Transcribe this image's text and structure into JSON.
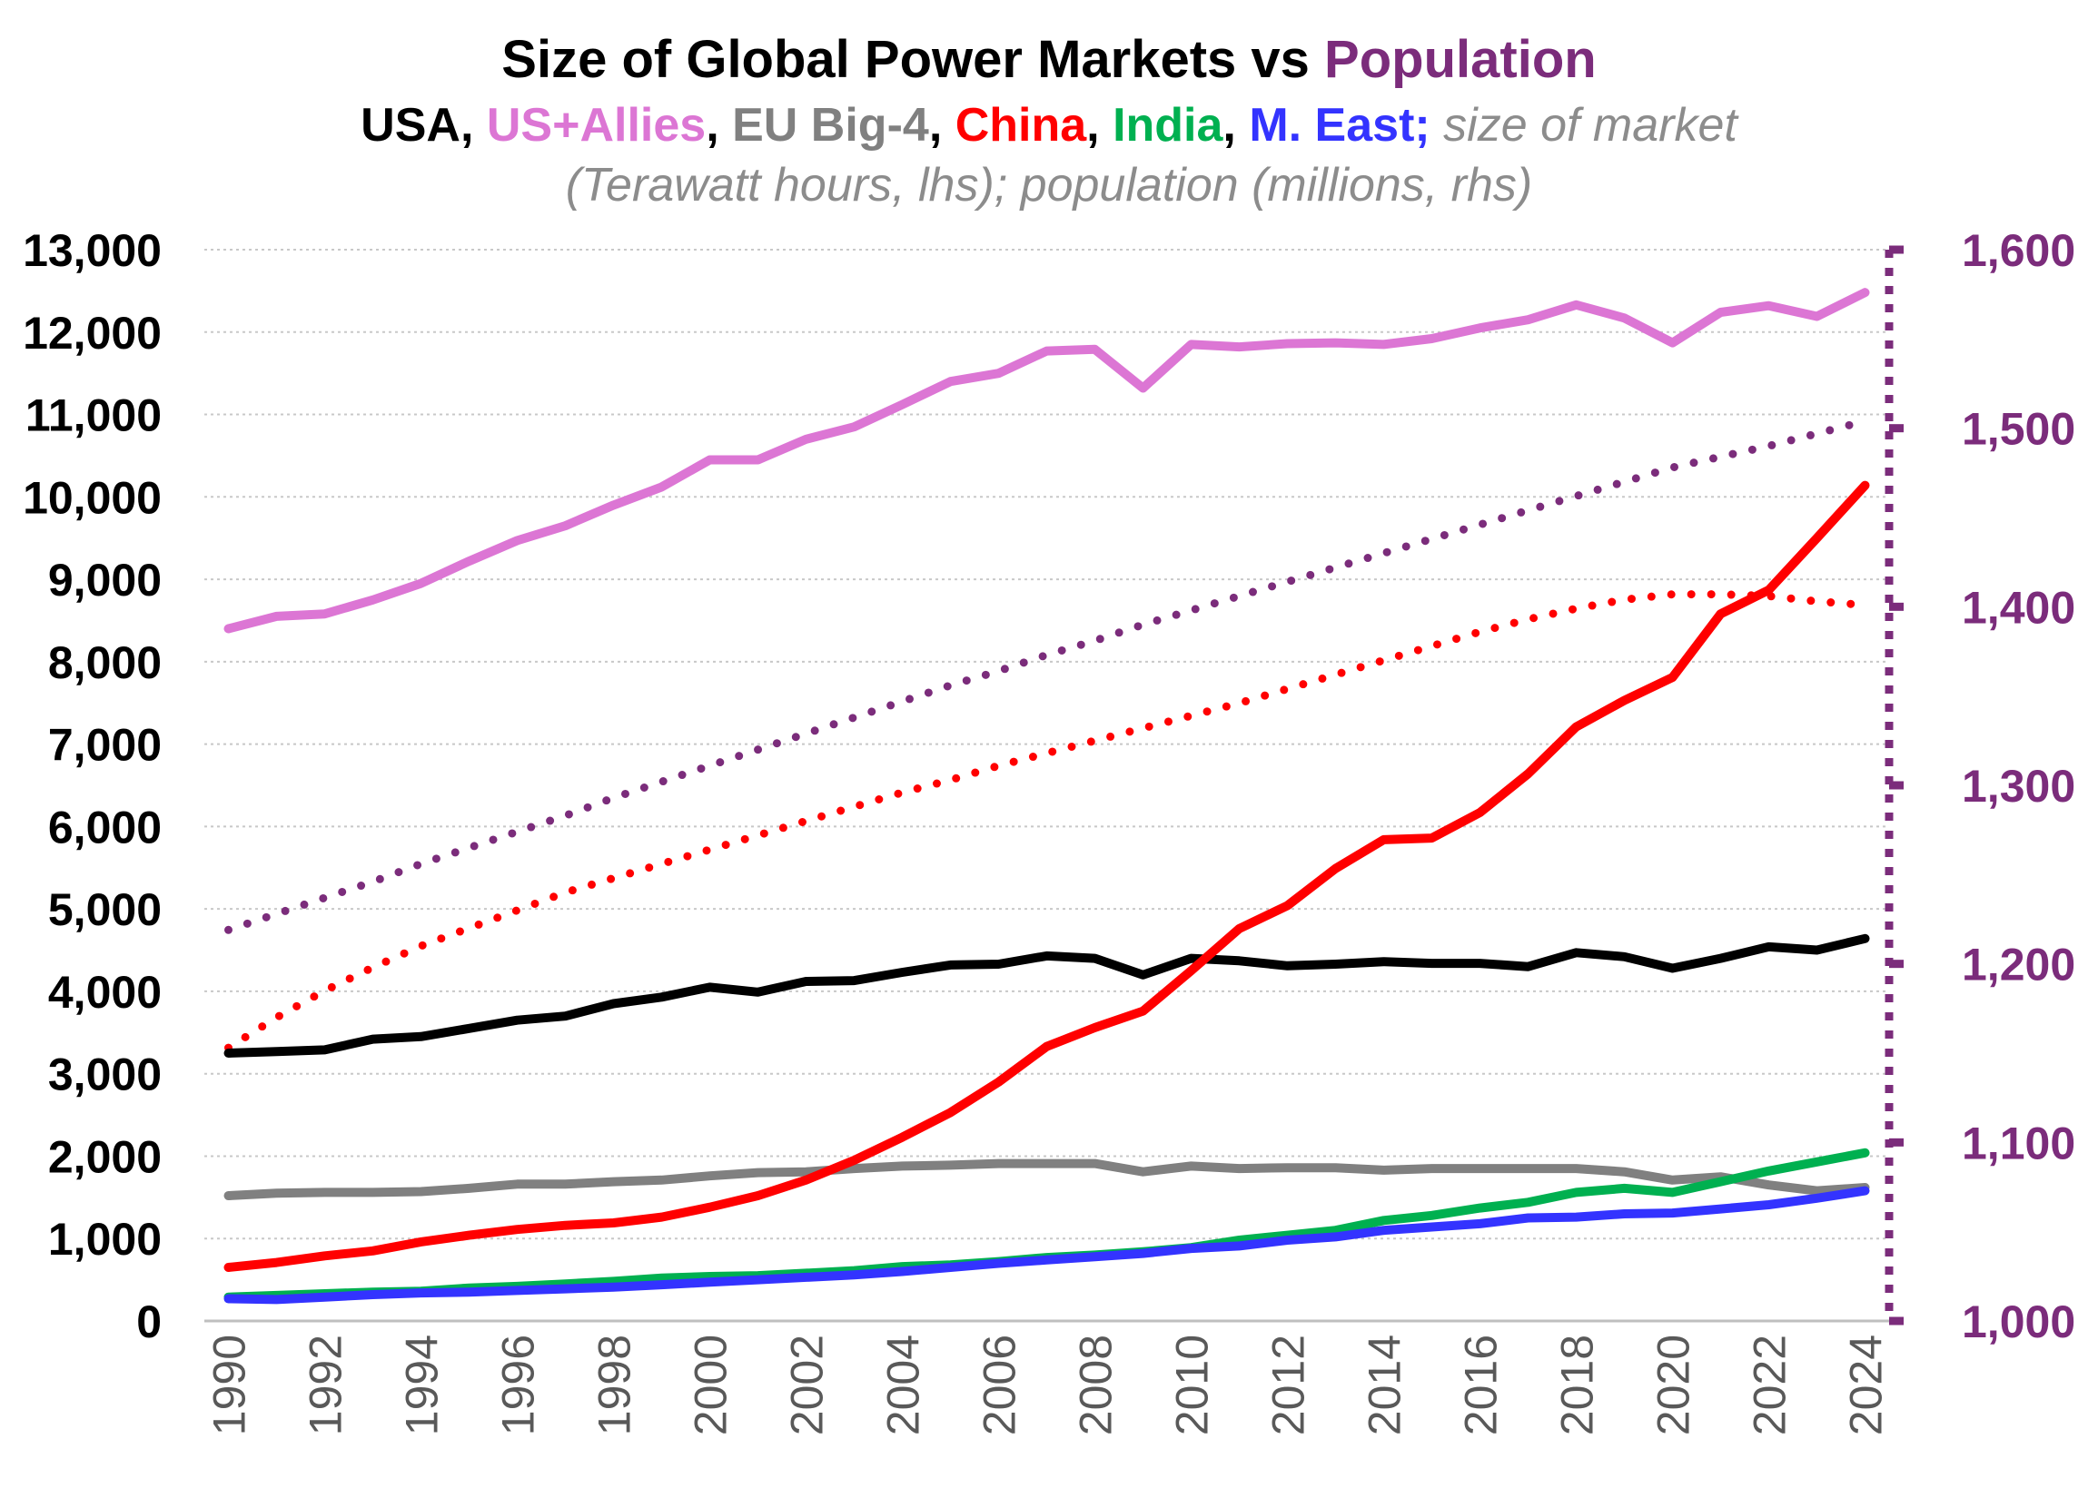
{
  "chart_data": {
    "type": "line",
    "title": {
      "prefix": "Size of Global Power Markets vs ",
      "highlight": "Population",
      "highlight_color": "#7b2c7b"
    },
    "subtitle": {
      "parts": [
        {
          "text": "USA",
          "color": "#000000"
        },
        {
          "text": ", ",
          "color": "#000000"
        },
        {
          "text": "US+Allies",
          "color": "#dc76d4"
        },
        {
          "text": ", ",
          "color": "#000000"
        },
        {
          "text": "EU Big-4",
          "color": "#808080"
        },
        {
          "text": ", ",
          "color": "#000000"
        },
        {
          "text": "China",
          "color": "#ff0000"
        },
        {
          "text": ", ",
          "color": "#000000"
        },
        {
          "text": "India",
          "color": "#00b050"
        },
        {
          "text": ", ",
          "color": "#000000"
        },
        {
          "text": "M. East;",
          "color": "#3333ff"
        }
      ],
      "note": " size of market",
      "line2": "(Terawatt hours, lhs); population (millions, rhs)"
    },
    "x": [
      1990,
      1991,
      1992,
      1993,
      1994,
      1995,
      1996,
      1997,
      1998,
      1999,
      2000,
      2001,
      2002,
      2003,
      2004,
      2005,
      2006,
      2007,
      2008,
      2009,
      2010,
      2011,
      2012,
      2013,
      2014,
      2015,
      2016,
      2017,
      2018,
      2019,
      2020,
      2021,
      2022,
      2023,
      2024
    ],
    "x_tick_labels": [
      "1990",
      "1992",
      "1994",
      "1996",
      "1998",
      "2000",
      "2002",
      "2004",
      "2006",
      "2008",
      "2010",
      "2012",
      "2014",
      "2016",
      "2018",
      "2020",
      "2022",
      "2024"
    ],
    "ylim_left": [
      0,
      13000
    ],
    "y_left_ticks": [
      "0",
      "1,000",
      "2,000",
      "3,000",
      "4,000",
      "5,000",
      "6,000",
      "7,000",
      "8,000",
      "9,000",
      "10,000",
      "11,000",
      "12,000",
      "13,000"
    ],
    "ylim_right": [
      1000,
      1600
    ],
    "y_right_ticks": [
      "1,000",
      "1,100",
      "1,200",
      "1,300",
      "1,400",
      "1,500",
      "1,600"
    ],
    "right_axis_color": "#7b2c7b",
    "grid": true,
    "series": [
      {
        "key": "us_allies",
        "color": "#dc76d4",
        "axis": "left",
        "style": "solid",
        "values": [
          8400,
          8550,
          8580,
          8750,
          8950,
          9220,
          9470,
          9650,
          9900,
          10120,
          10450,
          10450,
          10700,
          10850,
          11120,
          11400,
          11500,
          11770,
          11790,
          11320,
          11850,
          11820,
          11860,
          11870,
          11850,
          11920,
          12050,
          12150,
          12330,
          12170,
          11870,
          12240,
          12320,
          12190,
          12480
        ]
      },
      {
        "key": "usa",
        "color": "#000000",
        "axis": "left",
        "style": "solid",
        "values": [
          3250,
          3270,
          3290,
          3420,
          3450,
          3550,
          3650,
          3700,
          3850,
          3930,
          4050,
          3990,
          4120,
          4130,
          4230,
          4320,
          4330,
          4430,
          4400,
          4200,
          4400,
          4370,
          4310,
          4330,
          4360,
          4340,
          4340,
          4300,
          4470,
          4420,
          4280,
          4400,
          4540,
          4500,
          4640
        ]
      },
      {
        "key": "eu_big4",
        "color": "#808080",
        "axis": "left",
        "style": "solid",
        "values": [
          1520,
          1550,
          1560,
          1560,
          1570,
          1610,
          1660,
          1660,
          1690,
          1710,
          1760,
          1800,
          1810,
          1850,
          1880,
          1890,
          1910,
          1910,
          1910,
          1810,
          1880,
          1850,
          1860,
          1860,
          1830,
          1850,
          1850,
          1850,
          1850,
          1810,
          1710,
          1750,
          1650,
          1580,
          1620
        ]
      },
      {
        "key": "china",
        "color": "#ff0000",
        "axis": "left",
        "style": "solid",
        "values": [
          650,
          710,
          790,
          850,
          960,
          1040,
          1110,
          1160,
          1190,
          1260,
          1380,
          1520,
          1710,
          1950,
          2230,
          2530,
          2900,
          3330,
          3560,
          3760,
          4250,
          4760,
          5040,
          5490,
          5840,
          5860,
          6170,
          6640,
          7210,
          7530,
          7810,
          8580,
          8870,
          9500,
          10140
        ]
      },
      {
        "key": "india",
        "color": "#00b050",
        "axis": "left",
        "style": "solid",
        "values": [
          290,
          310,
          330,
          350,
          360,
          400,
          420,
          450,
          480,
          520,
          540,
          550,
          580,
          610,
          660,
          680,
          720,
          770,
          800,
          840,
          890,
          980,
          1040,
          1100,
          1220,
          1280,
          1370,
          1440,
          1560,
          1610,
          1560,
          1690,
          1820,
          1930,
          2040
        ]
      },
      {
        "key": "m_east",
        "color": "#3333ff",
        "axis": "left",
        "style": "solid",
        "values": [
          270,
          260,
          290,
          320,
          340,
          350,
          370,
          390,
          410,
          440,
          470,
          500,
          530,
          560,
          600,
          650,
          700,
          740,
          780,
          820,
          880,
          910,
          980,
          1020,
          1100,
          1140,
          1180,
          1250,
          1260,
          1300,
          1310,
          1360,
          1410,
          1490,
          1580
        ]
      },
      {
        "key": "china_population",
        "color": "#ff0000",
        "axis": "right",
        "style": "dotted",
        "values": [
          1153,
          1170,
          1185,
          1198,
          1210,
          1220,
          1230,
          1240,
          1248,
          1256,
          1264,
          1272,
          1280,
          1288,
          1296,
          1303,
          1311,
          1318,
          1325,
          1332,
          1339,
          1346,
          1354,
          1362,
          1370,
          1378,
          1386,
          1393,
          1399,
          1404,
          1407,
          1407,
          1406,
          1403,
          1401
        ]
      },
      {
        "key": "india_population",
        "color": "#7b2c7b",
        "axis": "right",
        "style": "dotted",
        "values": [
          1219,
          1228,
          1237,
          1246,
          1256,
          1265,
          1274,
          1283,
          1293,
          1302,
          1311,
          1320,
          1329,
          1338,
          1347,
          1356,
          1364,
          1373,
          1381,
          1390,
          1398,
          1406,
          1414,
          1422,
          1430,
          1438,
          1446,
          1454,
          1462,
          1470,
          1478,
          1484,
          1490,
          1497,
          1504
        ]
      }
    ]
  }
}
